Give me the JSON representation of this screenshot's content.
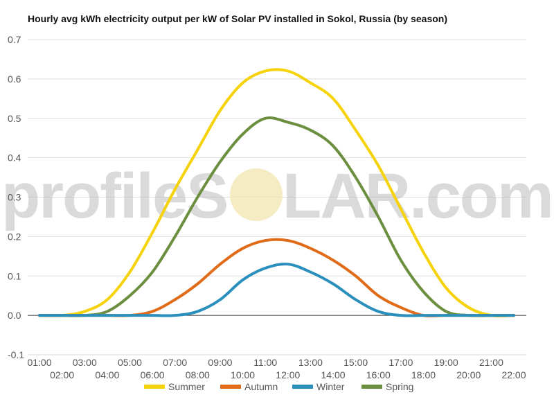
{
  "title": "Hourly avg kWh electricity output per kW of Solar PV installed in Sokol, Russia (by season)",
  "watermark": {
    "left": "profileS",
    "right": "LAR.com"
  },
  "chart_data": {
    "type": "line",
    "title": "Hourly avg kWh electricity output per kW of Solar PV installed in Sokol, Russia (by season)",
    "xlabel": "",
    "ylabel": "",
    "ylim": [
      -0.1,
      0.7
    ],
    "y_ticks": [
      "-0.1",
      "0.0",
      "0.1",
      "0.2",
      "0.3",
      "0.4",
      "0.5",
      "0.6",
      "0.7"
    ],
    "categories": [
      "01:00",
      "02:00",
      "03:00",
      "04:00",
      "05:00",
      "06:00",
      "07:00",
      "08:00",
      "09:00",
      "10:00",
      "11:00",
      "12:00",
      "13:00",
      "14:00",
      "15:00",
      "16:00",
      "17:00",
      "18:00",
      "19:00",
      "20:00",
      "21:00",
      "22:00"
    ],
    "grid": true,
    "legend_position": "bottom",
    "series": [
      {
        "name": "Summer",
        "color": "#f5d20a",
        "values": [
          0,
          0,
          0.01,
          0.04,
          0.11,
          0.21,
          0.32,
          0.42,
          0.52,
          0.59,
          0.62,
          0.62,
          0.59,
          0.55,
          0.47,
          0.38,
          0.27,
          0.16,
          0.07,
          0.02,
          0,
          0
        ]
      },
      {
        "name": "Autumn",
        "color": "#e06c1a",
        "values": [
          0,
          0,
          0,
          0,
          0,
          0.01,
          0.04,
          0.08,
          0.13,
          0.17,
          0.19,
          0.19,
          0.17,
          0.14,
          0.1,
          0.05,
          0.02,
          0,
          0,
          0,
          0,
          0
        ]
      },
      {
        "name": "Winter",
        "color": "#2a8fbd",
        "values": [
          0,
          0,
          0,
          0,
          0,
          0,
          0,
          0.01,
          0.04,
          0.09,
          0.12,
          0.13,
          0.11,
          0.08,
          0.04,
          0.01,
          0,
          0,
          0,
          0,
          0,
          0
        ]
      },
      {
        "name": "Spring",
        "color": "#6b8f3f",
        "values": [
          0,
          0,
          0,
          0.01,
          0.05,
          0.11,
          0.2,
          0.3,
          0.39,
          0.46,
          0.5,
          0.49,
          0.47,
          0.43,
          0.35,
          0.25,
          0.14,
          0.06,
          0.01,
          0,
          0,
          0
        ]
      }
    ]
  }
}
